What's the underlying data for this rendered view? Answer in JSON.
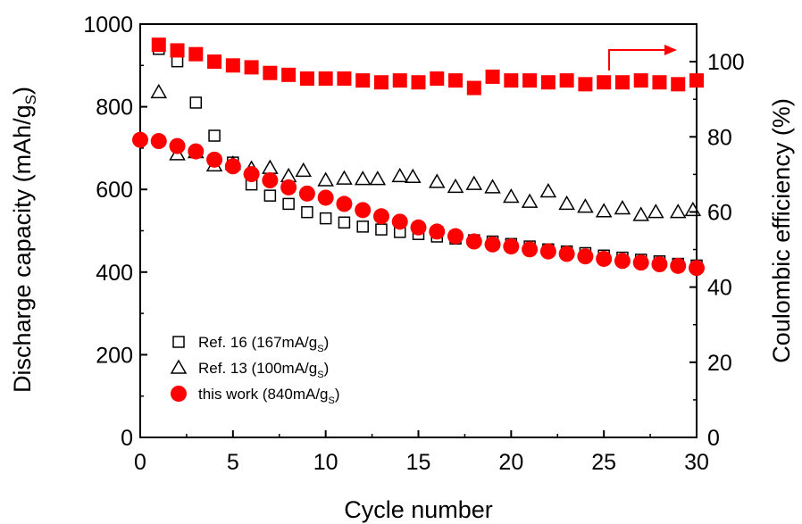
{
  "chart_data": {
    "type": "scatter",
    "title": "",
    "xlabel": "Cycle number",
    "ylabel_left": {
      "text": "Discharge capacity (mAh/g",
      "subscript": "S",
      "suffix": ")"
    },
    "ylabel_right": "Coulombic efficiency (%)",
    "xlim": [
      0,
      30
    ],
    "ylim_left": [
      0,
      1000
    ],
    "ylim_right": [
      0,
      110
    ],
    "xticks": [
      0,
      5,
      10,
      15,
      20,
      25,
      30
    ],
    "yticks_left": [
      0,
      200,
      400,
      600,
      800,
      1000
    ],
    "yticks_right": [
      0,
      20,
      40,
      60,
      80,
      100
    ],
    "grid": false,
    "legend_position": "bottom-left",
    "series": [
      {
        "name": "Ref. 16 (167mA/g",
        "name_sub": "S",
        "name_suffix": ")",
        "axis": "left",
        "marker": "open-square",
        "color": "#000000",
        "x": [
          1,
          2,
          3,
          4,
          5,
          6,
          7,
          8,
          9,
          10,
          11,
          12,
          13,
          14,
          15,
          16,
          17,
          18,
          19,
          20,
          21,
          22,
          23,
          24,
          25,
          26,
          27,
          28,
          29,
          30
        ],
        "values": [
          940,
          910,
          810,
          730,
          665,
          612,
          585,
          565,
          545,
          530,
          520,
          510,
          503,
          497,
          492,
          486,
          481,
          477,
          474,
          468,
          462,
          455,
          450,
          446,
          440,
          435,
          430,
          426,
          420,
          416
        ]
      },
      {
        "name": "Ref. 13 (100mA/g",
        "name_sub": "S",
        "name_suffix": ")",
        "axis": "left",
        "marker": "open-triangle",
        "color": "#000000",
        "x": [
          1,
          2,
          3,
          4,
          5,
          6,
          7,
          8,
          8.8,
          10,
          11,
          12,
          12.8,
          14,
          14.7,
          16,
          17,
          18,
          19,
          20,
          21,
          22,
          23,
          24,
          25,
          26,
          27,
          27.8,
          29,
          29.8
        ],
        "values": [
          835,
          685,
          690,
          658,
          662,
          650,
          652,
          632,
          645,
          622,
          626,
          625,
          625,
          632,
          630,
          618,
          606,
          613,
          605,
          582,
          570,
          595,
          565,
          558,
          547,
          554,
          538,
          545,
          545,
          550
        ]
      },
      {
        "name": "this work (840mA/g",
        "name_sub": "S",
        "name_suffix": ")",
        "axis": "left",
        "marker": "filled-circle",
        "color": "#ff0000",
        "x": [
          0,
          1,
          2,
          3,
          4,
          5,
          6,
          7,
          8,
          9,
          10,
          11,
          12,
          13,
          14,
          15,
          16,
          17,
          18,
          19,
          20,
          21,
          22,
          23,
          24,
          25,
          26,
          27,
          28,
          29,
          30
        ],
        "values": [
          720,
          717,
          705,
          692,
          672,
          656,
          637,
          622,
          605,
          590,
          580,
          565,
          550,
          535,
          522,
          508,
          498,
          487,
          474,
          467,
          462,
          455,
          450,
          444,
          438,
          432,
          427,
          423,
          419,
          415,
          410
        ]
      },
      {
        "name": "",
        "axis": "right",
        "marker": "filled-square",
        "color": "#ff0000",
        "x": [
          1,
          2,
          3,
          4,
          5,
          6,
          7,
          8,
          9,
          10,
          11,
          12,
          13,
          14,
          15,
          16,
          17,
          18,
          19,
          20,
          21,
          22,
          23,
          24,
          25,
          26,
          27,
          28,
          29,
          30
        ],
        "values": [
          104.5,
          103,
          102,
          100,
          99,
          98.5,
          97,
          96.5,
          95.5,
          95.5,
          95.5,
          95,
          94.5,
          95,
          94.5,
          95.5,
          95,
          93,
          96,
          95,
          95,
          94.5,
          95,
          94,
          94.5,
          94.5,
          95,
          94.5,
          94,
          95
        ]
      }
    ],
    "annotations": [
      {
        "type": "arrow",
        "direction": "right",
        "color": "#ff0000",
        "points_to_axis": "right"
      }
    ]
  }
}
